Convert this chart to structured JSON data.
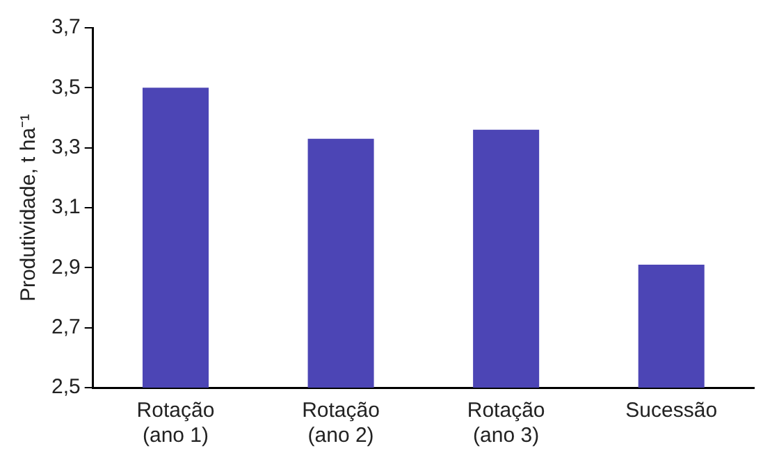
{
  "chart_data": {
    "type": "bar",
    "ylabel": "Produtividade, t ha⁻¹",
    "categories": [
      "Rotação (ano 1)",
      "Rotação (ano 2)",
      "Rotação (ano 3)",
      "Sucessão"
    ],
    "values": [
      3.5,
      3.33,
      3.36,
      2.91
    ],
    "color": "#4c45b5",
    "ylim": [
      2.5,
      3.7
    ],
    "yticks": [
      {
        "value": 2.5,
        "label": "2,5"
      },
      {
        "value": 2.7,
        "label": "2,7"
      },
      {
        "value": 2.9,
        "label": "2,9"
      },
      {
        "value": 3.1,
        "label": "3,1"
      },
      {
        "value": 3.3,
        "label": "3,3"
      },
      {
        "value": 3.5,
        "label": "3,5"
      },
      {
        "value": 3.7,
        "label": "3,7"
      }
    ],
    "grid": false,
    "legend": false
  }
}
